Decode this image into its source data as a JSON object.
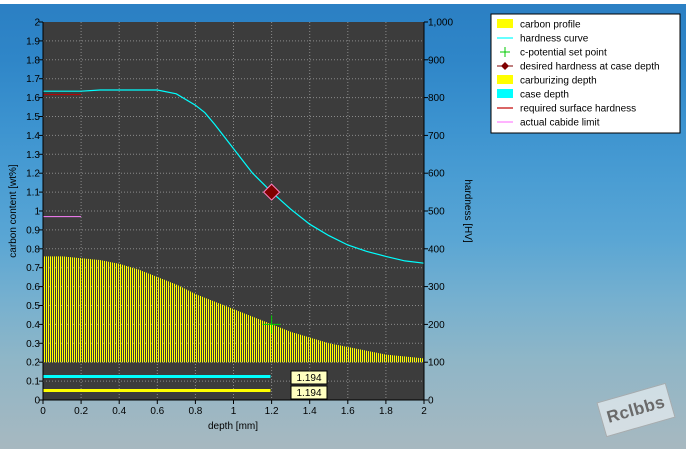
{
  "chart_data": {
    "type": "line",
    "plot_background": "#3c3c3c",
    "grid": true,
    "legend_position": "top-right",
    "x_axis": {
      "label": "depth [mm]",
      "range": [
        0,
        2
      ],
      "ticks": [
        "0",
        "0.2",
        "0.4",
        "0.6",
        "0.8",
        "1",
        "1.2",
        "1.4",
        "1.6",
        "1.8",
        "2"
      ]
    },
    "y_left": {
      "label": "carbon content [wt%]",
      "range": [
        0,
        2
      ],
      "ticks": [
        "0",
        "0.1",
        "0.2",
        "0.3",
        "0.4",
        "0.5",
        "0.6",
        "0.7",
        "0.8",
        "0.9",
        "1",
        "1.1",
        "1.2",
        "1.3",
        "1.4",
        "1.5",
        "1.6",
        "1.7",
        "1.8",
        "1.9",
        "2"
      ]
    },
    "y_right": {
      "label": "hardness [HV]",
      "range": [
        0,
        1000
      ],
      "ticks": [
        "0",
        "100",
        "200",
        "300",
        "400",
        "500",
        "600",
        "700",
        "800",
        "900",
        "1,000"
      ]
    },
    "legend": [
      {
        "label": "carbon profile",
        "color": "#ffff00",
        "marker": "box"
      },
      {
        "label": "hardness curve",
        "color": "#00ffff",
        "marker": "line"
      },
      {
        "label": "c-potential set point",
        "color": "#00c800",
        "marker": "cross"
      },
      {
        "label": "desired hardness at case depth",
        "color": "#800000",
        "marker": "diamond"
      },
      {
        "label": "carburizing depth",
        "color": "#ffff00",
        "marker": "box"
      },
      {
        "label": "case depth",
        "color": "#00ffff",
        "marker": "box"
      },
      {
        "label": "required surface hardness",
        "color": "#c00000",
        "marker": "line"
      },
      {
        "label": "actual cabide limit",
        "color": "#ff80ff",
        "marker": "line"
      }
    ],
    "series": [
      {
        "name": "carbon profile",
        "color": "#ffff00",
        "axis": "left",
        "x": [
          0,
          0.1,
          0.2,
          0.3,
          0.4,
          0.5,
          0.6,
          0.7,
          0.8,
          0.9,
          1.0,
          1.1,
          1.2,
          1.3,
          1.4,
          1.5,
          1.6,
          1.7,
          1.8,
          1.9,
          2.0
        ],
        "y": [
          0.76,
          0.76,
          0.75,
          0.74,
          0.72,
          0.69,
          0.65,
          0.61,
          0.56,
          0.52,
          0.48,
          0.44,
          0.4,
          0.36,
          0.33,
          0.3,
          0.28,
          0.26,
          0.24,
          0.23,
          0.22
        ]
      },
      {
        "name": "hardness curve",
        "color": "#00ffff",
        "axis": "right",
        "x": [
          0,
          0.2,
          0.3,
          0.4,
          0.5,
          0.6,
          0.7,
          0.8,
          0.85,
          0.9,
          1.0,
          1.1,
          1.2,
          1.3,
          1.4,
          1.5,
          1.6,
          1.7,
          1.8,
          1.9,
          2.0
        ],
        "y": [
          817,
          817,
          820,
          820,
          820,
          820,
          810,
          780,
          760,
          730,
          665,
          600,
          550,
          505,
          465,
          435,
          410,
          393,
          380,
          368,
          362
        ]
      }
    ],
    "required_surface_hardness": {
      "x": [
        0,
        0.2
      ],
      "y": 808,
      "axis": "right",
      "color": "#c00000"
    },
    "actual_carbide_limit": {
      "x": [
        0,
        0.2
      ],
      "y": 0.97,
      "axis": "left",
      "color": "#ff80ff"
    },
    "desired_hardness_point": {
      "x": 1.2,
      "y": 550,
      "axis": "right",
      "color": "#800000"
    },
    "c_potential_set_point": {
      "x": 1.2,
      "y": 0.4,
      "axis": "left",
      "color": "#00c800"
    },
    "carburizing_depth": {
      "value": 1.194,
      "label": "1.194",
      "color": "#ffff00"
    },
    "case_depth": {
      "value": 1.194,
      "label": "1.194",
      "color": "#00ffff"
    }
  },
  "watermark": {
    "text": "Rclbbs"
  }
}
